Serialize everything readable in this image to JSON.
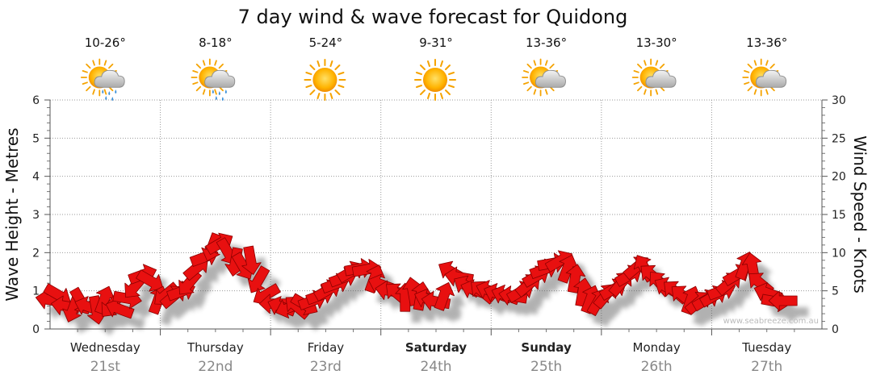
{
  "chart_data": {
    "type": "line",
    "title": "7 day wind & wave forecast for Quidong",
    "ylabel_left": "Wave Height - Metres",
    "ylabel_right": "Wind Speed - Knots",
    "ylim_left": [
      0,
      6
    ],
    "ylim_right": [
      0,
      30
    ],
    "yticks_left": [
      "0",
      "1",
      "2",
      "3",
      "4",
      "5",
      "6"
    ],
    "yticks_right": [
      "0",
      "5",
      "10",
      "15",
      "20",
      "25",
      "30"
    ],
    "grid": true,
    "watermark": "www.seabreeze.com.au",
    "days": [
      {
        "name": "Wednesday",
        "date": "21st",
        "temp": "10-26°",
        "icon": "sun-cloud-rain-icon",
        "bold": false
      },
      {
        "name": "Thursday",
        "date": "22nd",
        "temp": "8-18°",
        "icon": "sun-cloud-rain-icon",
        "bold": false
      },
      {
        "name": "Friday",
        "date": "23rd",
        "temp": "5-24°",
        "icon": "sun-icon",
        "bold": false
      },
      {
        "name": "Saturday",
        "date": "24th",
        "temp": "9-31°",
        "icon": "sun-icon",
        "bold": true
      },
      {
        "name": "Sunday",
        "date": "25th",
        "temp": "13-36°",
        "icon": "sun-cloud-icon",
        "bold": true
      },
      {
        "name": "Monday",
        "date": "26th",
        "temp": "13-30°",
        "icon": "sun-cloud-icon",
        "bold": false
      },
      {
        "name": "Tuesday",
        "date": "27th",
        "temp": "13-36°",
        "icon": "sun-cloud-icon",
        "bold": false
      }
    ],
    "wind_series": {
      "name": "Wind",
      "color": "#e81010",
      "unit": "knots",
      "points": [
        {
          "t": 0.0,
          "v": 3.8,
          "dir": 100
        },
        {
          "t": 0.07,
          "v": 4.5,
          "dir": 300
        },
        {
          "t": 0.14,
          "v": 3.0,
          "dir": 100
        },
        {
          "t": 0.21,
          "v": 2.7,
          "dir": 20
        },
        {
          "t": 0.28,
          "v": 3.6,
          "dir": 330
        },
        {
          "t": 0.35,
          "v": 2.9,
          "dir": 110
        },
        {
          "t": 0.42,
          "v": 2.5,
          "dir": 350
        },
        {
          "t": 0.49,
          "v": 3.8,
          "dir": 200
        },
        {
          "t": 0.56,
          "v": 3.1,
          "dir": 40
        },
        {
          "t": 0.63,
          "v": 2.6,
          "dir": 110
        },
        {
          "t": 0.7,
          "v": 4.0,
          "dir": 280
        },
        {
          "t": 0.77,
          "v": 5.6,
          "dir": 40
        },
        {
          "t": 0.84,
          "v": 7.1,
          "dir": 250
        },
        {
          "t": 0.91,
          "v": 6.3,
          "dir": 300
        },
        {
          "t": 0.98,
          "v": 3.8,
          "dir": 200
        },
        {
          "t": 1.05,
          "v": 4.5,
          "dir": 50
        },
        {
          "t": 1.12,
          "v": 4.3,
          "dir": 230
        },
        {
          "t": 1.19,
          "v": 4.9,
          "dir": 250
        },
        {
          "t": 1.26,
          "v": 6.0,
          "dir": 40
        },
        {
          "t": 1.33,
          "v": 8.0,
          "dir": 230
        },
        {
          "t": 1.4,
          "v": 9.4,
          "dir": 250
        },
        {
          "t": 1.47,
          "v": 10.7,
          "dir": 20
        },
        {
          "t": 1.54,
          "v": 11.2,
          "dir": 240
        },
        {
          "t": 1.61,
          "v": 10.1,
          "dir": 330
        },
        {
          "t": 1.68,
          "v": 8.8,
          "dir": 10
        },
        {
          "t": 1.75,
          "v": 8.2,
          "dir": 330
        },
        {
          "t": 1.82,
          "v": 9.0,
          "dir": 350
        },
        {
          "t": 1.89,
          "v": 6.4,
          "dir": 30
        },
        {
          "t": 1.96,
          "v": 4.5,
          "dir": 60
        },
        {
          "t": 2.03,
          "v": 3.3,
          "dir": 90
        },
        {
          "t": 2.1,
          "v": 2.9,
          "dir": 110
        },
        {
          "t": 2.17,
          "v": 2.8,
          "dir": 70
        },
        {
          "t": 2.24,
          "v": 2.9,
          "dir": 130
        },
        {
          "t": 2.31,
          "v": 3.2,
          "dir": 300
        },
        {
          "t": 2.38,
          "v": 3.7,
          "dir": 250
        },
        {
          "t": 2.45,
          "v": 4.4,
          "dir": 250
        },
        {
          "t": 2.52,
          "v": 5.1,
          "dir": 240
        },
        {
          "t": 2.59,
          "v": 5.9,
          "dir": 250
        },
        {
          "t": 2.66,
          "v": 6.7,
          "dir": 250
        },
        {
          "t": 2.73,
          "v": 7.5,
          "dir": 240
        },
        {
          "t": 2.8,
          "v": 7.9,
          "dir": 260
        },
        {
          "t": 2.87,
          "v": 7.8,
          "dir": 260
        },
        {
          "t": 2.94,
          "v": 6.6,
          "dir": 200
        },
        {
          "t": 3.01,
          "v": 5.8,
          "dir": 110
        },
        {
          "t": 3.08,
          "v": 5.0,
          "dir": 100
        },
        {
          "t": 3.15,
          "v": 4.6,
          "dir": 130
        },
        {
          "t": 3.22,
          "v": 4.1,
          "dir": 180
        },
        {
          "t": 3.29,
          "v": 4.9,
          "dir": 170
        },
        {
          "t": 3.36,
          "v": 4.3,
          "dir": 190
        },
        {
          "t": 3.43,
          "v": 3.9,
          "dir": 110
        },
        {
          "t": 3.5,
          "v": 3.6,
          "dir": 100
        },
        {
          "t": 3.57,
          "v": 4.3,
          "dir": 200
        },
        {
          "t": 3.64,
          "v": 7.5,
          "dir": 120
        },
        {
          "t": 3.71,
          "v": 6.8,
          "dir": 100
        },
        {
          "t": 3.78,
          "v": 5.6,
          "dir": 120
        },
        {
          "t": 3.85,
          "v": 5.1,
          "dir": 110
        },
        {
          "t": 3.92,
          "v": 4.9,
          "dir": 130
        },
        {
          "t": 3.99,
          "v": 5.0,
          "dir": 110
        },
        {
          "t": 4.06,
          "v": 4.6,
          "dir": 110
        },
        {
          "t": 4.13,
          "v": 4.4,
          "dir": 110
        },
        {
          "t": 4.2,
          "v": 4.3,
          "dir": 100
        },
        {
          "t": 4.27,
          "v": 4.9,
          "dir": 240
        },
        {
          "t": 4.34,
          "v": 5.8,
          "dir": 230
        },
        {
          "t": 4.41,
          "v": 6.9,
          "dir": 240
        },
        {
          "t": 4.48,
          "v": 7.8,
          "dir": 250
        },
        {
          "t": 4.55,
          "v": 8.6,
          "dir": 260
        },
        {
          "t": 4.62,
          "v": 8.9,
          "dir": 240
        },
        {
          "t": 4.69,
          "v": 7.9,
          "dir": 200
        },
        {
          "t": 4.76,
          "v": 6.6,
          "dir": 190
        },
        {
          "t": 4.83,
          "v": 4.8,
          "dir": 190
        },
        {
          "t": 4.9,
          "v": 3.9,
          "dir": 200
        },
        {
          "t": 4.97,
          "v": 3.6,
          "dir": 210
        },
        {
          "t": 5.04,
          "v": 4.4,
          "dir": 220
        },
        {
          "t": 5.11,
          "v": 5.2,
          "dir": 240
        },
        {
          "t": 5.18,
          "v": 6.0,
          "dir": 220
        },
        {
          "t": 5.25,
          "v": 7.0,
          "dir": 240
        },
        {
          "t": 5.32,
          "v": 8.1,
          "dir": 230
        },
        {
          "t": 5.39,
          "v": 8.0,
          "dir": 150
        },
        {
          "t": 5.46,
          "v": 7.0,
          "dir": 130
        },
        {
          "t": 5.53,
          "v": 6.0,
          "dir": 140
        },
        {
          "t": 5.6,
          "v": 5.4,
          "dir": 120
        },
        {
          "t": 5.67,
          "v": 4.9,
          "dir": 130
        },
        {
          "t": 5.74,
          "v": 4.3,
          "dir": 130
        },
        {
          "t": 5.81,
          "v": 3.8,
          "dir": 200
        },
        {
          "t": 5.88,
          "v": 3.5,
          "dir": 230
        },
        {
          "t": 5.95,
          "v": 3.8,
          "dir": 240
        },
        {
          "t": 6.02,
          "v": 4.3,
          "dir": 240
        },
        {
          "t": 6.09,
          "v": 5.0,
          "dir": 250
        },
        {
          "t": 6.16,
          "v": 6.0,
          "dir": 230
        },
        {
          "t": 6.23,
          "v": 7.1,
          "dir": 240
        },
        {
          "t": 6.3,
          "v": 8.3,
          "dir": 200
        },
        {
          "t": 6.37,
          "v": 8.1,
          "dir": 170
        },
        {
          "t": 6.44,
          "v": 6.0,
          "dir": 130
        },
        {
          "t": 6.51,
          "v": 4.7,
          "dir": 110
        },
        {
          "t": 6.58,
          "v": 3.6,
          "dir": 280
        },
        {
          "t": 6.65,
          "v": 3.7,
          "dir": 90
        }
      ]
    }
  }
}
